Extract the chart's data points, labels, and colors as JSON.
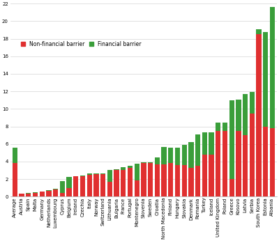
{
  "categories": [
    "Average",
    "Austria",
    "Spain",
    "Malta",
    "Germany",
    "Netherlands",
    "Luxembourg",
    "Cyprus",
    "Belgium",
    "Ireland",
    "Czechia",
    "Italy",
    "Norway",
    "Switzerland",
    "Lithuania",
    "Bulgaria",
    "France",
    "Portugal",
    "Montenegro",
    "Slovenia",
    "Sweden",
    "Croatia",
    "North Macedonia",
    "Finland",
    "Hungary",
    "Slovakia",
    "Denmark",
    "Romania",
    "Turkey",
    "Iceland",
    "United Kingdom",
    "Poland",
    "Greece",
    "Kosovo",
    "Latvia",
    "Serbia",
    "South Korea",
    "Estonia",
    "Albania"
  ],
  "non_financial": [
    3.8,
    0.3,
    0.35,
    0.45,
    0.55,
    0.65,
    0.8,
    0.4,
    1.0,
    2.3,
    2.35,
    2.45,
    2.55,
    2.55,
    1.65,
    3.0,
    3.0,
    3.3,
    1.85,
    3.85,
    3.85,
    3.7,
    3.65,
    3.8,
    3.6,
    3.6,
    3.3,
    3.5,
    4.75,
    4.75,
    7.5,
    7.5,
    2.0,
    7.5,
    7.0,
    9.5,
    18.5,
    8.0,
    7.8
  ],
  "financial": [
    1.8,
    0.05,
    0.05,
    0.05,
    0.05,
    0.1,
    0.1,
    1.4,
    1.25,
    0.05,
    0.05,
    0.15,
    0.1,
    0.1,
    1.35,
    0.1,
    0.35,
    0.2,
    1.9,
    0.05,
    0.05,
    0.75,
    2.0,
    1.8,
    2.0,
    2.3,
    2.95,
    3.55,
    2.55,
    2.55,
    0.95,
    0.95,
    9.0,
    3.55,
    4.7,
    2.4,
    0.6,
    10.8,
    13.8
  ],
  "bar_width": 0.75,
  "red_color": "#e03030",
  "green_color": "#3a9e3a",
  "background_color": "#ffffff",
  "grid_color": "#d4d4d4",
  "ylim": [
    0,
    22
  ],
  "yticks": [
    0,
    2,
    4,
    6,
    8,
    10,
    12,
    14,
    16,
    18,
    20,
    22
  ],
  "legend_labels": [
    "Non-financial barrier",
    "Financial barrier"
  ],
  "tick_fontsize": 5.0,
  "legend_fontsize": 5.5
}
